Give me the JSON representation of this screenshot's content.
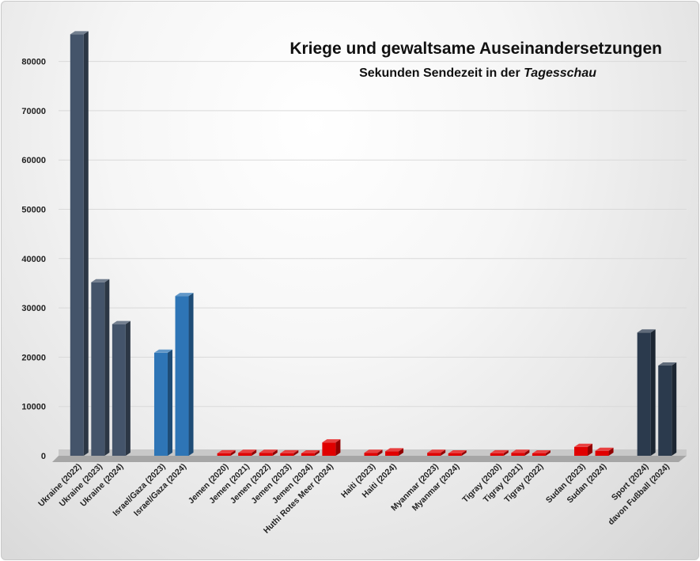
{
  "chart_data": {
    "type": "bar",
    "title": "Kriege und gewaltsame Auseinandersetzungen",
    "subtitle_prefix": "Sekunden Sendezeit in der ",
    "subtitle_italic": "Tagesschau",
    "xlabel": "",
    "ylabel": "",
    "ylim": [
      0,
      85000
    ],
    "yticks": [
      "0",
      "10000",
      "20000",
      "30000",
      "40000",
      "50000",
      "60000",
      "70000",
      "80000"
    ],
    "grid": true,
    "legend": "none",
    "colors": {
      "ukraine": "#44546a",
      "israel": "#2e75b6",
      "other": "#e00000",
      "sport": "#2b3a4d",
      "grid": "#d9d9d9",
      "floor": "#a6a6a6"
    },
    "bars": [
      {
        "label": "Ukraine (2022)",
        "value": 85500,
        "group": "ukraine"
      },
      {
        "label": "Ukraine (2023)",
        "value": 35200,
        "group": "ukraine"
      },
      {
        "label": "Ukraine (2024)",
        "value": 26700,
        "group": "ukraine"
      },
      {
        "label": "",
        "value": null,
        "group": "gap"
      },
      {
        "label": "Israel/Gaza (2023)",
        "value": 20900,
        "group": "israel"
      },
      {
        "label": "Israel/Gaza (2024)",
        "value": 32400,
        "group": "israel"
      },
      {
        "label": "",
        "value": null,
        "group": "gap"
      },
      {
        "label": "Jemen (2020)",
        "value": 500,
        "group": "other"
      },
      {
        "label": "Jemen (2021)",
        "value": 600,
        "group": "other"
      },
      {
        "label": "Jemen (2022)",
        "value": 600,
        "group": "other"
      },
      {
        "label": "Jemen (2023)",
        "value": 500,
        "group": "other"
      },
      {
        "label": "Jemen (2024)",
        "value": 400,
        "group": "other"
      },
      {
        "label": "Huthi Rotes Meer (2024)",
        "value": 2700,
        "group": "other"
      },
      {
        "label": "",
        "value": null,
        "group": "gap"
      },
      {
        "label": "Haiti (2023)",
        "value": 600,
        "group": "other"
      },
      {
        "label": "Haiti (2024)",
        "value": 900,
        "group": "other"
      },
      {
        "label": "",
        "value": null,
        "group": "gap"
      },
      {
        "label": "Myanmar (2023)",
        "value": 600,
        "group": "other"
      },
      {
        "label": "Myanmar (2024)",
        "value": 300,
        "group": "other"
      },
      {
        "label": "",
        "value": null,
        "group": "gap"
      },
      {
        "label": "Tigray (2020)",
        "value": 500,
        "group": "other"
      },
      {
        "label": "Tigray (2021)",
        "value": 600,
        "group": "other"
      },
      {
        "label": "Tigray (2022)",
        "value": 400,
        "group": "other"
      },
      {
        "label": "",
        "value": null,
        "group": "gap"
      },
      {
        "label": "Sudan (2023)",
        "value": 1800,
        "group": "other"
      },
      {
        "label": "Sudan (2024)",
        "value": 1000,
        "group": "other"
      },
      {
        "label": "",
        "value": null,
        "group": "gap"
      },
      {
        "label": "Sport (2024)",
        "value": 25000,
        "group": "sport"
      },
      {
        "label": "davon Fußball (2024)",
        "value": 18300,
        "group": "sport"
      }
    ]
  }
}
